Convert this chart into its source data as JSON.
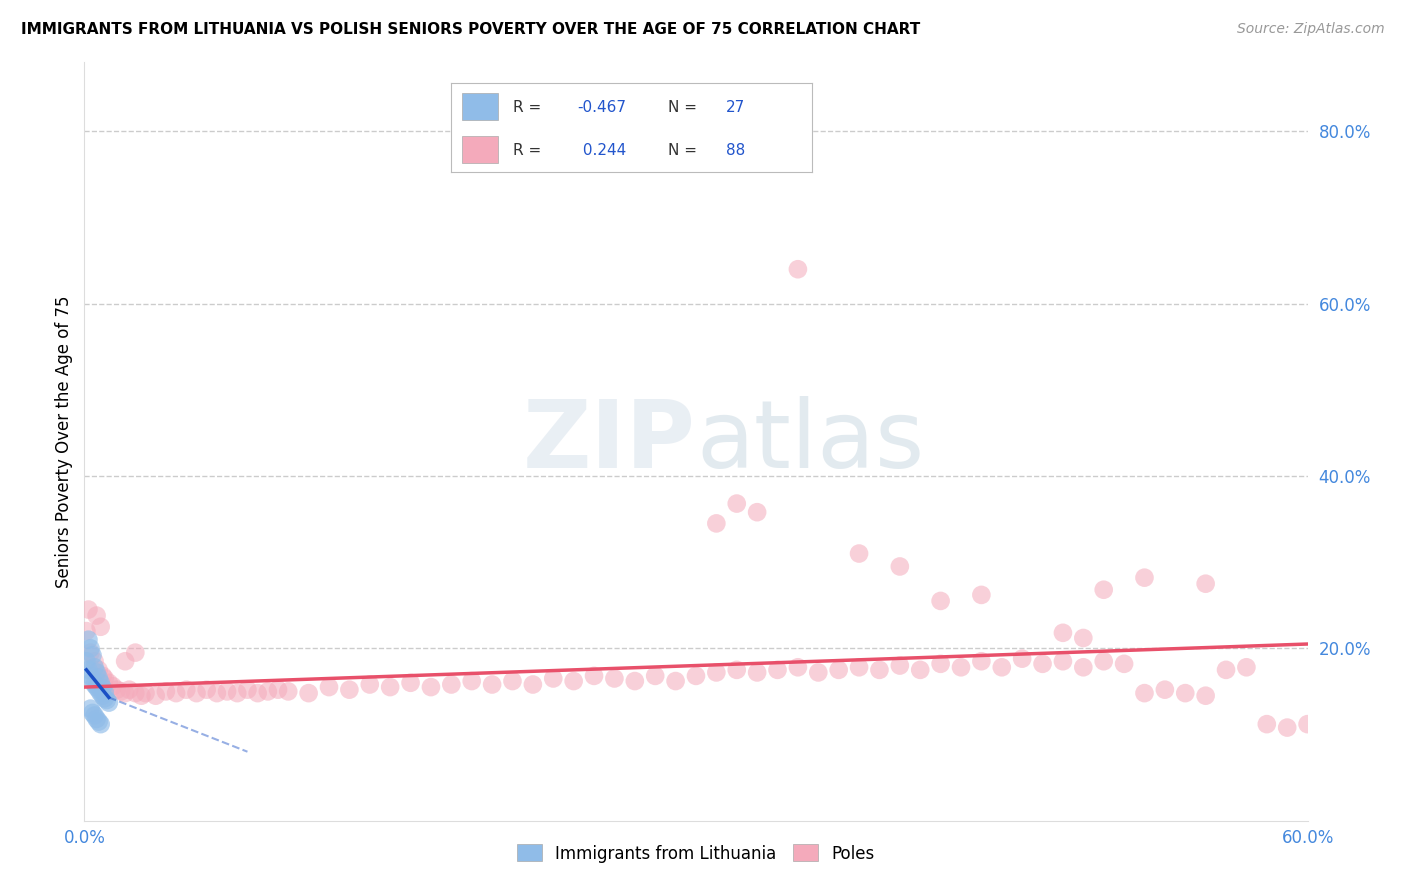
{
  "title": "IMMIGRANTS FROM LITHUANIA VS POLISH SENIORS POVERTY OVER THE AGE OF 75 CORRELATION CHART",
  "source": "Source: ZipAtlas.com",
  "ylabel": "Seniors Poverty Over the Age of 75",
  "xlim": [
    0.0,
    0.6
  ],
  "ylim": [
    0.0,
    0.88
  ],
  "ytick_labels": [
    "80.0%",
    "60.0%",
    "40.0%",
    "20.0%"
  ],
  "ytick_values": [
    0.8,
    0.6,
    0.4,
    0.2
  ],
  "watermark_zip": "ZIP",
  "watermark_atlas": "atlas",
  "blue_color": "#90bce8",
  "pink_color": "#f4aabb",
  "blue_line_color": "#1a4fc4",
  "pink_line_color": "#e8506a",
  "blue_scatter": [
    [
      0.001,
      0.185
    ],
    [
      0.002,
      0.175
    ],
    [
      0.003,
      0.168
    ],
    [
      0.004,
      0.162
    ],
    [
      0.005,
      0.158
    ],
    [
      0.006,
      0.155
    ],
    [
      0.007,
      0.152
    ],
    [
      0.008,
      0.148
    ],
    [
      0.009,
      0.145
    ],
    [
      0.01,
      0.142
    ],
    [
      0.011,
      0.14
    ],
    [
      0.012,
      0.137
    ],
    [
      0.002,
      0.21
    ],
    [
      0.003,
      0.2
    ],
    [
      0.004,
      0.192
    ],
    [
      0.005,
      0.178
    ],
    [
      0.006,
      0.172
    ],
    [
      0.007,
      0.166
    ],
    [
      0.008,
      0.16
    ],
    [
      0.009,
      0.154
    ],
    [
      0.01,
      0.149
    ],
    [
      0.003,
      0.13
    ],
    [
      0.004,
      0.125
    ],
    [
      0.005,
      0.122
    ],
    [
      0.006,
      0.118
    ],
    [
      0.007,
      0.115
    ],
    [
      0.008,
      0.112
    ]
  ],
  "pink_scatter": [
    [
      0.001,
      0.22
    ],
    [
      0.003,
      0.195
    ],
    [
      0.005,
      0.185
    ],
    [
      0.007,
      0.175
    ],
    [
      0.009,
      0.168
    ],
    [
      0.01,
      0.165
    ],
    [
      0.012,
      0.16
    ],
    [
      0.014,
      0.156
    ],
    [
      0.016,
      0.152
    ],
    [
      0.018,
      0.15
    ],
    [
      0.02,
      0.148
    ],
    [
      0.022,
      0.152
    ],
    [
      0.025,
      0.148
    ],
    [
      0.028,
      0.145
    ],
    [
      0.03,
      0.148
    ],
    [
      0.035,
      0.145
    ],
    [
      0.04,
      0.15
    ],
    [
      0.045,
      0.148
    ],
    [
      0.05,
      0.152
    ],
    [
      0.055,
      0.148
    ],
    [
      0.06,
      0.152
    ],
    [
      0.065,
      0.148
    ],
    [
      0.07,
      0.15
    ],
    [
      0.075,
      0.148
    ],
    [
      0.08,
      0.152
    ],
    [
      0.085,
      0.148
    ],
    [
      0.09,
      0.15
    ],
    [
      0.095,
      0.152
    ],
    [
      0.1,
      0.15
    ],
    [
      0.11,
      0.148
    ],
    [
      0.12,
      0.155
    ],
    [
      0.13,
      0.152
    ],
    [
      0.14,
      0.158
    ],
    [
      0.15,
      0.155
    ],
    [
      0.16,
      0.16
    ],
    [
      0.17,
      0.155
    ],
    [
      0.18,
      0.158
    ],
    [
      0.19,
      0.162
    ],
    [
      0.2,
      0.158
    ],
    [
      0.21,
      0.162
    ],
    [
      0.22,
      0.158
    ],
    [
      0.23,
      0.165
    ],
    [
      0.24,
      0.162
    ],
    [
      0.25,
      0.168
    ],
    [
      0.26,
      0.165
    ],
    [
      0.27,
      0.162
    ],
    [
      0.28,
      0.168
    ],
    [
      0.29,
      0.162
    ],
    [
      0.3,
      0.168
    ],
    [
      0.31,
      0.172
    ],
    [
      0.32,
      0.175
    ],
    [
      0.33,
      0.172
    ],
    [
      0.34,
      0.175
    ],
    [
      0.35,
      0.178
    ],
    [
      0.36,
      0.172
    ],
    [
      0.37,
      0.175
    ],
    [
      0.38,
      0.178
    ],
    [
      0.39,
      0.175
    ],
    [
      0.4,
      0.18
    ],
    [
      0.41,
      0.175
    ],
    [
      0.42,
      0.182
    ],
    [
      0.43,
      0.178
    ],
    [
      0.44,
      0.185
    ],
    [
      0.45,
      0.178
    ],
    [
      0.46,
      0.188
    ],
    [
      0.47,
      0.182
    ],
    [
      0.48,
      0.185
    ],
    [
      0.49,
      0.178
    ],
    [
      0.5,
      0.185
    ],
    [
      0.51,
      0.182
    ],
    [
      0.52,
      0.148
    ],
    [
      0.53,
      0.152
    ],
    [
      0.54,
      0.148
    ],
    [
      0.55,
      0.145
    ],
    [
      0.56,
      0.175
    ],
    [
      0.57,
      0.178
    ],
    [
      0.58,
      0.112
    ],
    [
      0.59,
      0.108
    ],
    [
      0.6,
      0.112
    ],
    [
      0.002,
      0.245
    ],
    [
      0.006,
      0.238
    ],
    [
      0.008,
      0.225
    ],
    [
      0.02,
      0.185
    ],
    [
      0.025,
      0.195
    ],
    [
      0.31,
      0.345
    ],
    [
      0.32,
      0.368
    ],
    [
      0.33,
      0.358
    ],
    [
      0.35,
      0.64
    ],
    [
      0.38,
      0.31
    ],
    [
      0.4,
      0.295
    ],
    [
      0.42,
      0.255
    ],
    [
      0.44,
      0.262
    ],
    [
      0.5,
      0.268
    ],
    [
      0.52,
      0.282
    ],
    [
      0.55,
      0.275
    ],
    [
      0.48,
      0.218
    ],
    [
      0.49,
      0.212
    ]
  ],
  "pink_line_x0": 0.0,
  "pink_line_x1": 0.6,
  "pink_line_y0": 0.155,
  "pink_line_y1": 0.205,
  "blue_line_solid_x0": 0.001,
  "blue_line_solid_x1": 0.012,
  "blue_line_y0": 0.175,
  "blue_line_y1": 0.143,
  "blue_line_dash_x1": 0.08,
  "blue_line_dash_y1": 0.08
}
